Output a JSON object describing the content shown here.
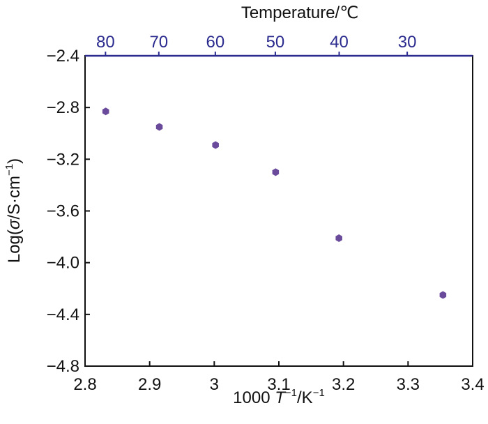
{
  "chart_data": {
    "type": "scatter",
    "title": "",
    "xlabel_prefix": "1000 ",
    "xlabel_var": "T",
    "xlabel_sup1": "−1",
    "xlabel_mid": "/K",
    "xlabel_sup2": "−1",
    "ylabel_prefix": "Log(",
    "ylabel_sigma": "σ",
    "ylabel_mid": "/S·cm",
    "ylabel_sup": "−1",
    "ylabel_suffix": ")",
    "top_axis_label": "Temperature/℃",
    "xlim": [
      2.8,
      3.4
    ],
    "ylim": [
      -4.8,
      -2.4
    ],
    "x_ticks": [
      2.8,
      2.9,
      3.0,
      3.1,
      3.2,
      3.3,
      3.4
    ],
    "x_tick_labels": [
      "2.8",
      "2.9",
      "3",
      "3.1",
      "3.2",
      "3.3",
      "3.4"
    ],
    "y_ticks": [
      -2.4,
      -2.8,
      -3.2,
      -3.6,
      -4.0,
      -4.4,
      -4.8
    ],
    "y_tick_labels": [
      "−2.4",
      "−2.8",
      "−3.2",
      "−3.6",
      "−4.0",
      "−4.4",
      "−4.8"
    ],
    "top_ticks_celsius": [
      80,
      70,
      60,
      50,
      40,
      30
    ],
    "top_tick_labels": [
      "80",
      "70",
      "60",
      "50",
      "40",
      "30"
    ],
    "grid": false,
    "marker_color": "#6a4a9a",
    "top_axis_color": "#2b2b8f",
    "points": [
      {
        "x": 2.832,
        "y": -2.83
      },
      {
        "x": 2.915,
        "y": -2.95
      },
      {
        "x": 3.002,
        "y": -3.09
      },
      {
        "x": 3.095,
        "y": -3.3
      },
      {
        "x": 3.193,
        "y": -3.81
      },
      {
        "x": 3.354,
        "y": -4.25
      }
    ]
  }
}
